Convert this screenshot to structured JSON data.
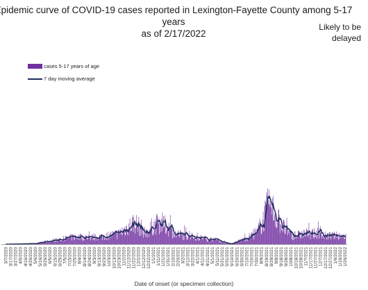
{
  "title": "Epidemic curve of COVID-19 cases reported in Lexington-Fayette County among 5-17 years\nas of 2/17/2022",
  "note": "Likely to be\ndelayed",
  "legend": {
    "bars_label": "cases 5-17 years of age",
    "line_label": "7 day moving average"
  },
  "colors": {
    "bars": "#7030a0",
    "line": "#1f2d5c"
  },
  "chart_data": {
    "type": "bar",
    "title": "Epidemic curve of COVID-19 cases reported in Lexington-Fayette County among 5-17 years as of 2/17/2022",
    "xlabel": "Date of onset (or specimen collection)",
    "ylabel": "",
    "x_start": "3/7/2020",
    "x_end": "1/28/2022",
    "tick_labels": [
      "3/7/2020",
      "3/17/2020",
      "3/27/2020",
      "4/6/2020",
      "4/16/2020",
      "4/26/2020",
      "5/6/2020",
      "5/16/2020",
      "5/26/2020",
      "6/5/2020",
      "6/15/2020",
      "6/25/2020",
      "7/5/2020",
      "7/15/2020",
      "7/25/2020",
      "8/4/2020",
      "8/14/2020",
      "8/24/2020",
      "9/3/2020",
      "9/13/2020",
      "9/23/2020",
      "10/3/2020",
      "10/13/2020",
      "10/23/2020",
      "11/2/2020",
      "11/12/2020",
      "11/22/2020",
      "12/2/2020",
      "12/12/2020",
      "12/22/2020",
      "1/1/2021",
      "1/11/2021",
      "1/21/2021",
      "1/31/2021",
      "2/10/2021",
      "2/20/2021",
      "3/2/2021",
      "3/12/2021",
      "3/22/2021",
      "4/1/2021",
      "4/11/2021",
      "4/21/2021",
      "5/1/2021",
      "5/11/2021",
      "5/21/2021",
      "5/31/2021",
      "6/10/2021",
      "6/20/2021",
      "6/30/2021",
      "7/10/2021",
      "7/20/2021",
      "7/30/2021",
      "8/9/2021",
      "8/19/2021",
      "8/29/2021",
      "9/8/2021",
      "9/18/2021",
      "9/28/2021",
      "10/8/2021",
      "10/18/2021",
      "10/28/2021",
      "11/7/2021",
      "11/17/2021",
      "11/27/2021",
      "12/7/2021",
      "12/17/2021",
      "12/27/2021",
      "1/6/2022",
      "1/16/2022",
      "1/26/2022"
    ],
    "series": [
      {
        "name": "cases 5-17 years of age",
        "type": "bar"
      },
      {
        "name": "7 day moving average",
        "type": "line"
      }
    ],
    "trend_anchors_days_values": [
      [
        0,
        0
      ],
      [
        60,
        0.3
      ],
      [
        80,
        1.2
      ],
      [
        110,
        2.2
      ],
      [
        140,
        3.5
      ],
      [
        170,
        3.2
      ],
      [
        200,
        3.8
      ],
      [
        230,
        5
      ],
      [
        250,
        8.5
      ],
      [
        262,
        10.5
      ],
      [
        275,
        8
      ],
      [
        285,
        5
      ],
      [
        300,
        9
      ],
      [
        315,
        10.5
      ],
      [
        330,
        8
      ],
      [
        345,
        5
      ],
      [
        370,
        4
      ],
      [
        400,
        3
      ],
      [
        430,
        2
      ],
      [
        450,
        0.5
      ],
      [
        460,
        0.2
      ],
      [
        490,
        3
      ],
      [
        510,
        5
      ],
      [
        525,
        12
      ],
      [
        535,
        19
      ],
      [
        545,
        16
      ],
      [
        560,
        10
      ],
      [
        575,
        5
      ],
      [
        590,
        4
      ],
      [
        605,
        5
      ],
      [
        630,
        5
      ],
      [
        640,
        6
      ],
      [
        645,
        4
      ]
    ],
    "ylim": [
      0,
      40
    ],
    "grid": false,
    "legend_position": "top-left"
  }
}
